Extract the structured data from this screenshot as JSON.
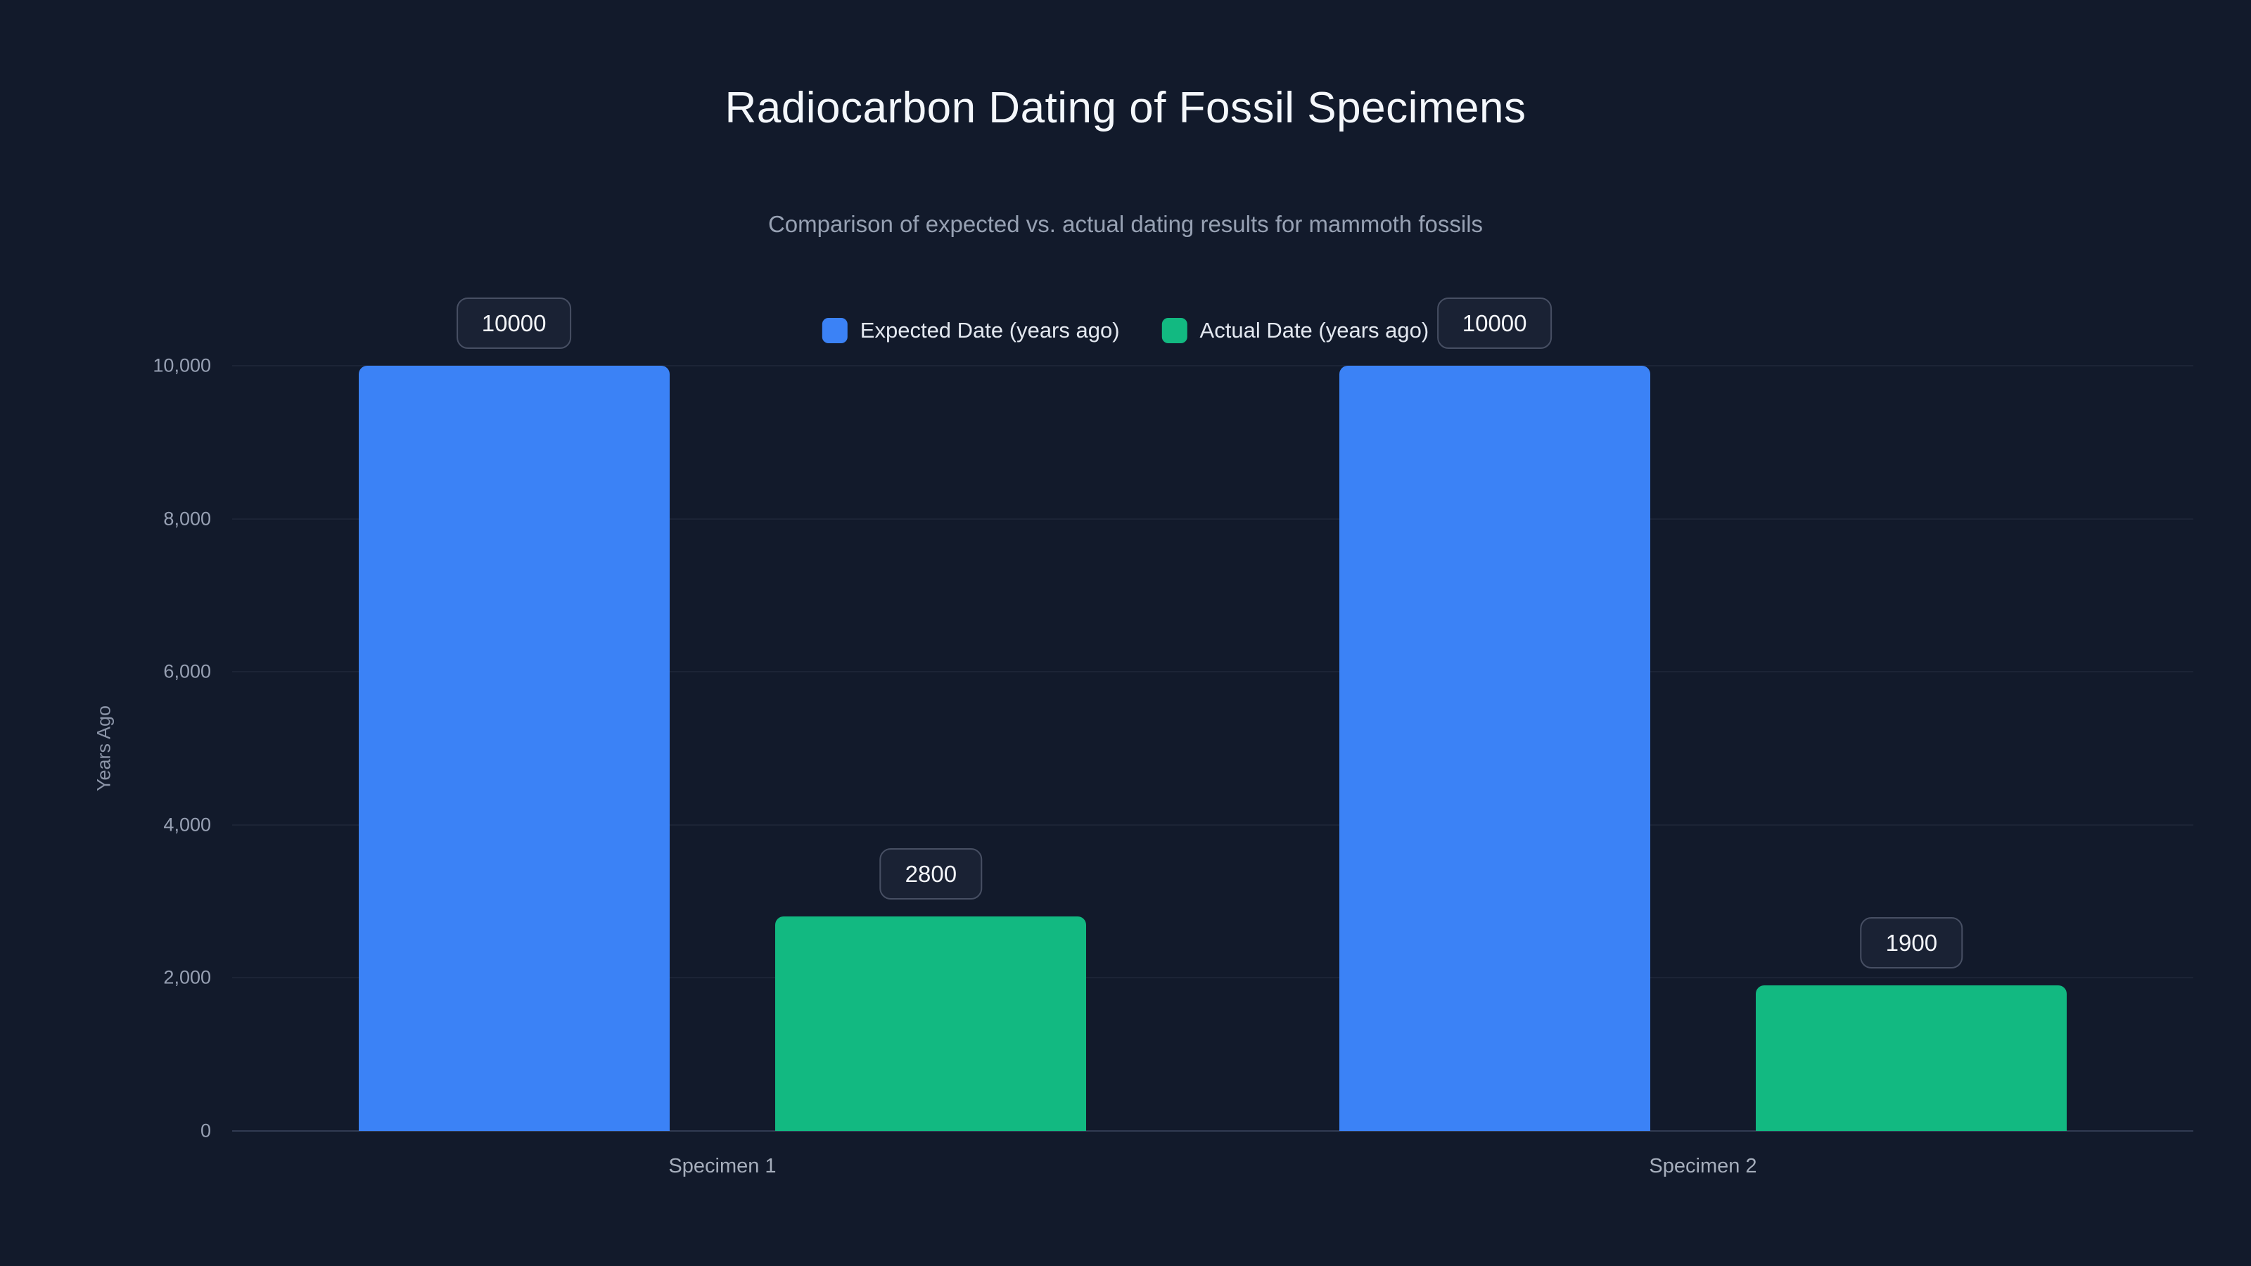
{
  "theme": {
    "background": "#121a2b",
    "grid_color": "#1c2436",
    "axis_line_color": "#313b52",
    "title_color": "#f4f7fb",
    "subtitle_color": "#97a1b3",
    "tick_color": "#97a0b3",
    "label_pill_bg": "#1a2234",
    "label_pill_border": "#474f63",
    "expected_color": "#3b82f6",
    "actual_color": "#12b981"
  },
  "chart_data": {
    "type": "bar",
    "title": "Radiocarbon Dating of Fossil Specimens",
    "subtitle": "Comparison of expected vs. actual dating results for mammoth fossils",
    "categories": [
      "Specimen 1",
      "Specimen 2"
    ],
    "series": [
      {
        "name": "Expected Date (years ago)",
        "color": "#3b82f6",
        "values": [
          10000,
          10000
        ]
      },
      {
        "name": "Actual Date (years ago)",
        "color": "#12b981",
        "values": [
          2800,
          1900
        ]
      }
    ],
    "data_labels": [
      "10000",
      "2800",
      "10000",
      "1900"
    ],
    "xlabel": "",
    "ylabel": "Years Ago",
    "ylim": [
      0,
      10000
    ],
    "yticks": [
      0,
      2000,
      4000,
      6000,
      8000,
      10000
    ],
    "ytick_labels": [
      "0",
      "2,000",
      "4,000",
      "6,000",
      "8,000",
      "10,000"
    ],
    "grid": true,
    "legend_position": "top-center"
  }
}
